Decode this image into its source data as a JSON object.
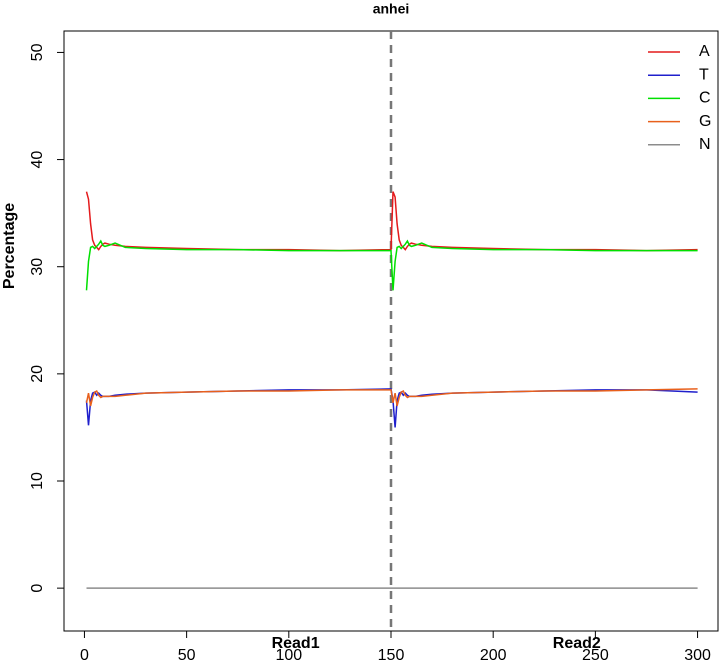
{
  "chart_data": {
    "type": "line",
    "title": "anhei",
    "y_label": "Percentage",
    "annotations": [
      "Read1",
      "Read2"
    ],
    "vline": 150,
    "x": [
      1,
      2,
      3,
      4,
      5,
      6,
      7,
      8,
      9,
      10,
      12,
      15,
      20,
      30,
      50,
      75,
      100,
      125,
      150,
      151,
      152,
      153,
      154,
      155,
      156,
      157,
      158,
      159,
      160,
      162,
      165,
      170,
      180,
      200,
      225,
      250,
      275,
      300
    ],
    "series": [
      {
        "name": "A",
        "color": "#e41a1c",
        "values": [
          37,
          36.3,
          34,
          32.5,
          32,
          31.8,
          31.6,
          31.9,
          32.1,
          32.2,
          32.1,
          32.0,
          31.9,
          31.8,
          31.7,
          31.6,
          31.6,
          31.5,
          31.6,
          37,
          36.5,
          34,
          32.5,
          32,
          31.8,
          31.6,
          31.9,
          32.1,
          32.2,
          32.1,
          32.0,
          31.9,
          31.8,
          31.7,
          31.6,
          31.6,
          31.5,
          31.6
        ]
      },
      {
        "name": "T",
        "color": "#1f1fcc",
        "values": [
          17.5,
          15.2,
          17.5,
          18.2,
          18.3,
          18.0,
          18.2,
          18.0,
          17.9,
          17.9,
          17.9,
          18.0,
          18.1,
          18.2,
          18.3,
          18.4,
          18.5,
          18.5,
          18.6,
          17.5,
          15.0,
          17.5,
          18.2,
          18.3,
          18.0,
          18.2,
          18.0,
          17.9,
          17.9,
          17.9,
          18.0,
          18.1,
          18.2,
          18.3,
          18.4,
          18.5,
          18.5,
          18.3
        ]
      },
      {
        "name": "C",
        "color": "#00e000",
        "values": [
          27.8,
          30.5,
          31.8,
          31.9,
          31.7,
          31.9,
          32.1,
          32.4,
          32.0,
          31.9,
          32.0,
          32.2,
          31.8,
          31.7,
          31.6,
          31.6,
          31.5,
          31.5,
          31.5,
          27.8,
          30.5,
          31.8,
          31.9,
          31.7,
          31.9,
          32.1,
          32.4,
          32.0,
          31.9,
          32.0,
          32.2,
          31.8,
          31.7,
          31.6,
          31.6,
          31.5,
          31.5,
          31.5
        ]
      },
      {
        "name": "G",
        "color": "#e8601c",
        "values": [
          17.3,
          18.2,
          17.0,
          17.8,
          18.3,
          18.4,
          18.0,
          17.8,
          17.9,
          17.9,
          17.9,
          17.9,
          18.0,
          18.2,
          18.3,
          18.4,
          18.4,
          18.5,
          18.5,
          17.3,
          18.2,
          17.0,
          17.8,
          18.3,
          18.4,
          18.0,
          17.8,
          17.9,
          17.9,
          17.9,
          17.9,
          18.0,
          18.2,
          18.3,
          18.4,
          18.4,
          18.5,
          18.6
        ]
      },
      {
        "name": "N",
        "color": "#8c8c8c",
        "values": [
          0,
          0,
          0,
          0,
          0,
          0,
          0,
          0,
          0,
          0,
          0,
          0,
          0,
          0,
          0,
          0,
          0,
          0,
          0,
          0,
          0,
          0,
          0,
          0,
          0,
          0,
          0,
          0,
          0,
          0,
          0,
          0,
          0,
          0,
          0,
          0,
          0,
          0
        ]
      }
    ],
    "xlim": [
      -10,
      310
    ],
    "ylim": [
      -4,
      52
    ],
    "xticks": [
      0,
      50,
      100,
      150,
      200,
      250,
      300
    ],
    "yticks": [
      0,
      10,
      20,
      30,
      40,
      50
    ],
    "legend": "top-right"
  }
}
